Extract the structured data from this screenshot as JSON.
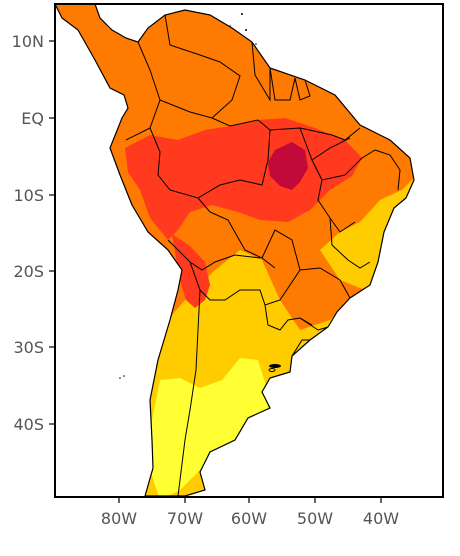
{
  "map": {
    "lat_labels": [
      "10N",
      "EQ",
      "10S",
      "20S",
      "30S",
      "40S"
    ],
    "lon_labels": [
      "80W",
      "70W",
      "60W",
      "50W",
      "40W"
    ],
    "colors": {
      "ocean": "#ffffff",
      "frame": "#000000",
      "border": "#000000",
      "yellow_light": "#ffff33",
      "yellow": "#ffcc00",
      "orange_light": "#ffaa33",
      "orange": "#ff7a00",
      "red": "#ff3a1e",
      "dark_red": "#c20a3a"
    }
  }
}
